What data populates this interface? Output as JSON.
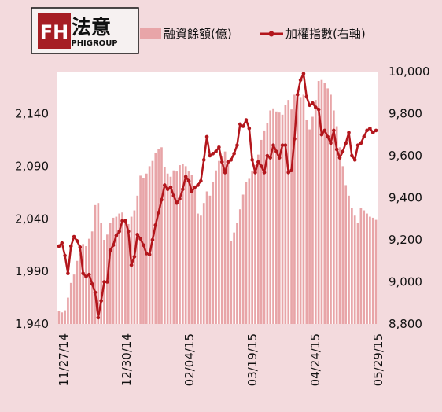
{
  "logo": {
    "mark": "FH",
    "name_cn": "法意",
    "name_en": "PHIGROUP"
  },
  "colors": {
    "bar": "#e8a5a8",
    "line": "#b3161c",
    "background": "#f3dadd",
    "plot": "#ffffff",
    "logo_red": "#a61e24"
  },
  "chart_data": {
    "type": "bar",
    "grid": false,
    "legend_position": "top",
    "x_tick_labels": [
      "11/27/14",
      "12/30/14",
      "02/04/15",
      "03/19/15",
      "04/24/15",
      "05/29/15"
    ],
    "y_left": {
      "ticks": [
        "2,140",
        "2,090",
        "2,040",
        "1,990",
        "1,940"
      ],
      "range": [
        1940,
        2180
      ]
    },
    "y_right": {
      "ticks": [
        "10,000",
        "9,800",
        "9,600",
        "9,400",
        "9,200",
        "9,000",
        "8,800"
      ],
      "range": [
        8800,
        10000
      ]
    },
    "series": [
      {
        "name": "融資餘額(億)",
        "type": "bar",
        "axis": "left",
        "values": [
          1952,
          1951,
          1953,
          1965,
          1979,
          1987,
          2000,
          2007,
          2016,
          2014,
          2021,
          2028,
          2053,
          2055,
          2036,
          2020,
          2025,
          2036,
          2041,
          2042,
          2045,
          2046,
          2040,
          2035,
          2042,
          2048,
          2062,
          2081,
          2079,
          2083,
          2090,
          2095,
          2103,
          2106,
          2108,
          2089,
          2083,
          2080,
          2086,
          2085,
          2091,
          2092,
          2090,
          2085,
          2082,
          2070,
          2045,
          2043,
          2055,
          2066,
          2062,
          2075,
          2086,
          2095,
          2100,
          2104,
          2096,
          2019,
          2027,
          2036,
          2049,
          2063,
          2075,
          2078,
          2085,
          2091,
          2101,
          2115,
          2124,
          2131,
          2143,
          2145,
          2142,
          2141,
          2139,
          2148,
          2153,
          2144,
          2158,
          2162,
          2155,
          2158,
          2134,
          2125,
          2137,
          2153,
          2171,
          2172,
          2169,
          2164,
          2158,
          2143,
          2128,
          2108,
          2090,
          2072,
          2062,
          2050,
          2043,
          2036,
          2050,
          2048,
          2045,
          2042,
          2041,
          2039
        ]
      },
      {
        "name": "加權指數(右軸)",
        "type": "line",
        "axis": "right",
        "values": [
          9170,
          9185,
          9125,
          9040,
          9170,
          9215,
          9195,
          9165,
          9040,
          9025,
          9035,
          8990,
          8950,
          8830,
          8910,
          9000,
          9000,
          9150,
          9175,
          9220,
          9240,
          9290,
          9290,
          9240,
          9080,
          9120,
          9225,
          9205,
          9175,
          9135,
          9130,
          9200,
          9270,
          9330,
          9390,
          9460,
          9440,
          9450,
          9410,
          9375,
          9395,
          9440,
          9500,
          9480,
          9430,
          9450,
          9460,
          9480,
          9580,
          9690,
          9600,
          9610,
          9620,
          9640,
          9570,
          9520,
          9570,
          9580,
          9610,
          9650,
          9750,
          9740,
          9770,
          9730,
          9580,
          9520,
          9570,
          9550,
          9520,
          9600,
          9590,
          9650,
          9620,
          9590,
          9650,
          9650,
          9520,
          9530,
          9680,
          9890,
          9960,
          9990,
          9880,
          9840,
          9850,
          9830,
          9820,
          9700,
          9720,
          9690,
          9660,
          9720,
          9630,
          9590,
          9620,
          9660,
          9710,
          9600,
          9580,
          9650,
          9660,
          9690,
          9720,
          9730,
          9710,
          9720
        ]
      }
    ]
  }
}
